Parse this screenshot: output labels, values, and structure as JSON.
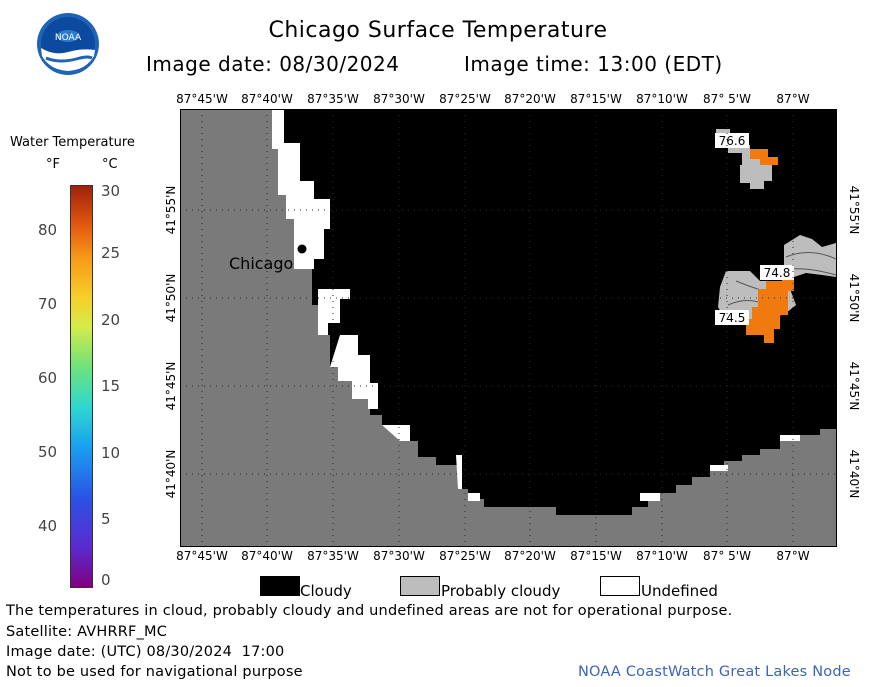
{
  "header": {
    "title": "Chicago Surface Temperature",
    "image_date": "Image date: 08/30/2024",
    "image_time": "Image time: 13:00 (EDT)"
  },
  "colorbar": {
    "label": "Water Temperature",
    "unit_f": "°F",
    "unit_c": "°C",
    "f_ticks": [
      "80",
      "70",
      "60",
      "50",
      "40"
    ],
    "c_ticks": [
      "30",
      "25",
      "20",
      "15",
      "10",
      "5",
      "0"
    ]
  },
  "map": {
    "lon_labels": [
      "87°45'W",
      "87°40'W",
      "87°35'W",
      "87°30'W",
      "87°25'W",
      "87°20'W",
      "87°15'W",
      "87°10'W",
      "87° 5'W",
      "87°W"
    ],
    "lat_labels": [
      "41°55'N",
      "41°50'N",
      "41°45'N",
      "41°40'N"
    ],
    "city_label": "Chicago",
    "readings": [
      "76.6",
      "74.8",
      "74.5"
    ],
    "colors": {
      "land": "#7a7a7a",
      "cloud": "#000000",
      "probably_cloudy": "#bdbdbd",
      "undefined": "#ffffff",
      "warm_water": "#f07a10"
    }
  },
  "legend": {
    "cloudy": "Cloudy",
    "probably_cloudy": "Probably cloudy",
    "undefined": "Undefined"
  },
  "footer": {
    "disclaimer": "The temperatures in cloud, probably cloudy and undefined areas are not for operational purpose.",
    "satellite": "Satellite: AVHRRF_MC",
    "utc_date": "Image date: (UTC) 08/30/2024  17:00",
    "nav_warning": "Not to be used for navigational purpose",
    "credit": "NOAA CoastWatch Great Lakes Node"
  },
  "logo_text": "NOAA"
}
